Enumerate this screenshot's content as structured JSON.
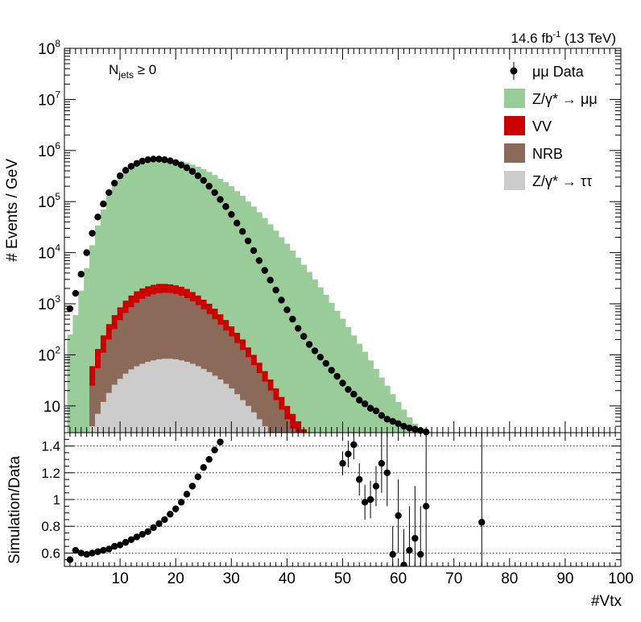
{
  "chart_data": {
    "type": "bar",
    "lumi": {
      "value": "14.6 fb",
      "sup": "-1",
      "energy": "(13 TeV)"
    },
    "selection": {
      "main": "N",
      "sub": "jets",
      "cut": "≥ 0"
    },
    "xlabel": "#Vtx",
    "ylabel_top": "# Events / GeV",
    "ylabel_bottom": "Simulation/Data",
    "xlim": [
      0,
      100
    ],
    "ylim_top": [
      3,
      100000000
    ],
    "ylim_bottom": [
      0.5,
      1.5
    ],
    "log_y_top": true,
    "x_ticks": [
      10,
      20,
      30,
      40,
      50,
      60,
      70,
      80,
      90,
      100
    ],
    "y_ticks_top": [
      {
        "value": 10,
        "base": "10",
        "exp": ""
      },
      {
        "value": 100,
        "base": "10",
        "exp": "2"
      },
      {
        "value": 1000,
        "base": "10",
        "exp": "3"
      },
      {
        "value": 10000,
        "base": "10",
        "exp": "4"
      },
      {
        "value": 100000,
        "base": "10",
        "exp": "5"
      },
      {
        "value": 1000000,
        "base": "10",
        "exp": "6"
      },
      {
        "value": 10000000,
        "base": "10",
        "exp": "7"
      },
      {
        "value": 100000000,
        "base": "10",
        "exp": "8"
      }
    ],
    "y_ticks_bottom": [
      "0.6",
      "0.8",
      "1",
      "1.2",
      "1.4"
    ],
    "legend": {
      "position": "top-right",
      "entries": [
        {
          "label": "μμ Data",
          "color": "#000000",
          "style": "marker"
        },
        {
          "label": "Z/γ* → μμ",
          "color": "#99cc99",
          "style": "fill"
        },
        {
          "label": "VV",
          "color": "#cc0000",
          "style": "fill"
        },
        {
          "label": "NRB",
          "color": "#8c6a5a",
          "style": "fill"
        },
        {
          "label": "Z/γ* → ττ",
          "color": "#cccccc",
          "style": "fill"
        }
      ]
    },
    "colors": {
      "dy_mumu": "#99cc99",
      "vv": "#cc0000",
      "nrb": "#8c6a5a",
      "dy_tautau": "#cccccc"
    },
    "data_points": [
      {
        "x": 1,
        "y": 800
      },
      {
        "x": 2,
        "y": 1600
      },
      {
        "x": 3,
        "y": 3800
      },
      {
        "x": 4,
        "y": 10000
      },
      {
        "x": 5,
        "y": 24000
      },
      {
        "x": 6,
        "y": 50000
      },
      {
        "x": 7,
        "y": 90000
      },
      {
        "x": 8,
        "y": 150000
      },
      {
        "x": 9,
        "y": 230000
      },
      {
        "x": 10,
        "y": 320000
      },
      {
        "x": 11,
        "y": 410000
      },
      {
        "x": 12,
        "y": 490000
      },
      {
        "x": 13,
        "y": 560000
      },
      {
        "x": 14,
        "y": 620000
      },
      {
        "x": 15,
        "y": 660000
      },
      {
        "x": 16,
        "y": 680000
      },
      {
        "x": 17,
        "y": 680000
      },
      {
        "x": 18,
        "y": 660000
      },
      {
        "x": 19,
        "y": 630000
      },
      {
        "x": 20,
        "y": 580000
      },
      {
        "x": 21,
        "y": 520000
      },
      {
        "x": 22,
        "y": 460000
      },
      {
        "x": 23,
        "y": 390000
      },
      {
        "x": 24,
        "y": 320000
      },
      {
        "x": 25,
        "y": 260000
      },
      {
        "x": 26,
        "y": 200000
      },
      {
        "x": 27,
        "y": 150000
      },
      {
        "x": 28,
        "y": 110000
      },
      {
        "x": 29,
        "y": 80000
      },
      {
        "x": 30,
        "y": 56000
      },
      {
        "x": 31,
        "y": 38000
      },
      {
        "x": 32,
        "y": 26000
      },
      {
        "x": 33,
        "y": 17000
      },
      {
        "x": 34,
        "y": 11000
      },
      {
        "x": 35,
        "y": 7000
      },
      {
        "x": 36,
        "y": 4500
      },
      {
        "x": 37,
        "y": 2900
      },
      {
        "x": 38,
        "y": 1850
      },
      {
        "x": 39,
        "y": 1180
      },
      {
        "x": 40,
        "y": 760
      },
      {
        "x": 41,
        "y": 500
      },
      {
        "x": 42,
        "y": 330
      },
      {
        "x": 43,
        "y": 230
      },
      {
        "x": 44,
        "y": 160
      },
      {
        "x": 45,
        "y": 120
      },
      {
        "x": 46,
        "y": 90
      },
      {
        "x": 47,
        "y": 68
      },
      {
        "x": 48,
        "y": 50
      },
      {
        "x": 49,
        "y": 38
      },
      {
        "x": 50,
        "y": 28
      },
      {
        "x": 51,
        "y": 21
      },
      {
        "x": 52,
        "y": 17
      },
      {
        "x": 53,
        "y": 13
      },
      {
        "x": 54,
        "y": 11
      },
      {
        "x": 55,
        "y": 9
      },
      {
        "x": 56,
        "y": 8
      },
      {
        "x": 57,
        "y": 6.5
      },
      {
        "x": 58,
        "y": 5.5
      },
      {
        "x": 59,
        "y": 5
      },
      {
        "x": 60,
        "y": 4.5
      },
      {
        "x": 61,
        "y": 4
      },
      {
        "x": 62,
        "y": 3.7
      },
      {
        "x": 63,
        "y": 3.5
      },
      {
        "x": 64,
        "y": 3.3
      },
      {
        "x": 65,
        "y": 3.1
      }
    ],
    "mc_dy_mumu": [
      250,
      600,
      1800,
      5000,
      14000,
      34000,
      70000,
      130000,
      210000,
      300000,
      390000,
      470000,
      540000,
      600000,
      640000,
      670000,
      680000,
      680000,
      670000,
      650000,
      620000,
      580000,
      530000,
      480000,
      430000,
      380000,
      330000,
      280000,
      240000,
      200000,
      160000,
      130000,
      100000,
      80000,
      62000,
      48000,
      36000,
      27000,
      20000,
      15000,
      11000,
      8000,
      5800,
      4200,
      3000,
      2100,
      1500,
      1050,
      730,
      510,
      350,
      240,
      165,
      115,
      78,
      53,
      36,
      25,
      17,
      12,
      8.5,
      6,
      4.5,
      3.5
    ],
    "mc_vv": [
      null,
      null,
      null,
      null,
      60,
      130,
      240,
      400,
      600,
      850,
      1150,
      1450,
      1750,
      2000,
      2200,
      2350,
      2450,
      2450,
      2400,
      2300,
      2150,
      1950,
      1700,
      1450,
      1200,
      1000,
      800,
      620,
      480,
      360,
      270,
      200,
      140,
      100,
      70,
      48,
      33,
      22,
      15,
      10,
      7,
      5,
      3.5
    ],
    "mc_nrb": [
      null,
      null,
      null,
      null,
      25,
      55,
      110,
      200,
      320,
      480,
      660,
      860,
      1050,
      1250,
      1400,
      1530,
      1620,
      1650,
      1630,
      1560,
      1440,
      1290,
      1120,
      940,
      780,
      630,
      500,
      390,
      300,
      230,
      170,
      125,
      90,
      63,
      44,
      30,
      20,
      13,
      8.5,
      5.5,
      3.6
    ],
    "mc_dy_tautau": [
      null,
      null,
      null,
      null,
      4,
      7,
      12,
      18,
      26,
      34,
      43,
      52,
      60,
      67,
      73,
      78,
      82,
      84,
      84,
      82,
      78,
      73,
      67,
      60,
      53,
      46,
      39,
      33,
      27,
      22,
      17,
      13,
      10,
      7.5,
      5.5,
      4,
      3
    ],
    "ratio_points": [
      {
        "x": 1,
        "y": 0.55
      },
      {
        "x": 2,
        "y": 0.62
      },
      {
        "x": 3,
        "y": 0.6
      },
      {
        "x": 4,
        "y": 0.59
      },
      {
        "x": 5,
        "y": 0.6
      },
      {
        "x": 6,
        "y": 0.61
      },
      {
        "x": 7,
        "y": 0.62
      },
      {
        "x": 8,
        "y": 0.63
      },
      {
        "x": 9,
        "y": 0.65
      },
      {
        "x": 10,
        "y": 0.66
      },
      {
        "x": 11,
        "y": 0.68
      },
      {
        "x": 12,
        "y": 0.7
      },
      {
        "x": 13,
        "y": 0.72
      },
      {
        "x": 14,
        "y": 0.74
      },
      {
        "x": 15,
        "y": 0.76
      },
      {
        "x": 16,
        "y": 0.79
      },
      {
        "x": 17,
        "y": 0.82
      },
      {
        "x": 18,
        "y": 0.85
      },
      {
        "x": 19,
        "y": 0.89
      },
      {
        "x": 20,
        "y": 0.93
      },
      {
        "x": 21,
        "y": 0.98
      },
      {
        "x": 22,
        "y": 1.04
      },
      {
        "x": 23,
        "y": 1.1
      },
      {
        "x": 24,
        "y": 1.17
      },
      {
        "x": 25,
        "y": 1.24
      },
      {
        "x": 26,
        "y": 1.3
      },
      {
        "x": 27,
        "y": 1.37
      },
      {
        "x": 28,
        "y": 1.43
      },
      {
        "x": 50,
        "y": 1.27
      },
      {
        "x": 51,
        "y": 1.34
      },
      {
        "x": 52,
        "y": 1.41
      },
      {
        "x": 53,
        "y": 1.15
      },
      {
        "x": 54,
        "y": 0.98
      },
      {
        "x": 55,
        "y": 1.0
      },
      {
        "x": 56,
        "y": 1.1
      },
      {
        "x": 57,
        "y": 1.27
      },
      {
        "x": 58,
        "y": 1.2
      },
      {
        "x": 59,
        "y": 0.59
      },
      {
        "x": 60,
        "y": 0.88
      },
      {
        "x": 61,
        "y": 0.51
      },
      {
        "x": 62,
        "y": 0.62
      },
      {
        "x": 63,
        "y": 0.71
      },
      {
        "x": 64,
        "y": 0.59
      },
      {
        "x": 65,
        "y": 0.95
      },
      {
        "x": 75,
        "y": 0.83
      }
    ],
    "ratio_errors": [
      {
        "x": 50,
        "lo": 1.18,
        "hi": 1.36
      },
      {
        "x": 51,
        "lo": 1.24,
        "hi": 1.44
      },
      {
        "x": 52,
        "lo": 1.3,
        "hi": 1.5
      },
      {
        "x": 53,
        "lo": 1.03,
        "hi": 1.27
      },
      {
        "x": 54,
        "lo": 0.85,
        "hi": 1.11
      },
      {
        "x": 55,
        "lo": 0.86,
        "hi": 1.14
      },
      {
        "x": 56,
        "lo": 0.95,
        "hi": 1.25
      },
      {
        "x": 57,
        "lo": 1.05,
        "hi": 1.5
      },
      {
        "x": 58,
        "lo": 0.95,
        "hi": 1.5
      },
      {
        "x": 59,
        "lo": 0.5,
        "hi": 0.8
      },
      {
        "x": 60,
        "lo": 0.6,
        "hi": 1.15
      },
      {
        "x": 61,
        "lo": 0.5,
        "hi": 0.78
      },
      {
        "x": 62,
        "lo": 0.5,
        "hi": 0.95
      },
      {
        "x": 63,
        "lo": 0.5,
        "hi": 1.1
      },
      {
        "x": 64,
        "lo": 0.5,
        "hi": 0.95
      },
      {
        "x": 65,
        "lo": 0.5,
        "hi": 1.5
      },
      {
        "x": 75,
        "lo": 0.5,
        "hi": 1.5
      }
    ]
  }
}
